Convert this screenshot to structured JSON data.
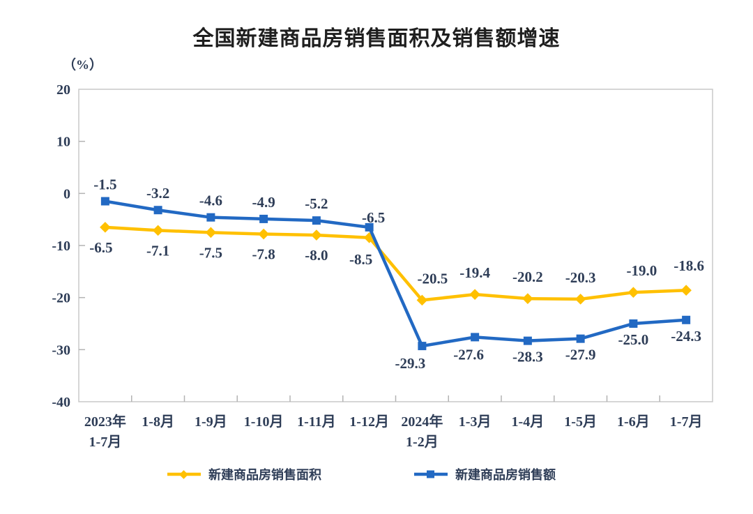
{
  "chart": {
    "title": "全国新建商品房销售面积及销售额增速",
    "unit_label": "（%）"
  },
  "chart_data": {
    "type": "line",
    "title": "全国新建商品房销售面积及销售额增速",
    "ylabel": "（%）",
    "xlabel": "",
    "ylim": [
      -40,
      20
    ],
    "yticks": [
      20,
      10,
      0,
      -10,
      -20,
      -30,
      -40
    ],
    "grid": false,
    "legend_position": "bottom",
    "categories": [
      "2023年\n1-7月",
      "1-8月",
      "1-9月",
      "1-10月",
      "1-11月",
      "1-12月",
      "2024年\n1-2月",
      "1-3月",
      "1-4月",
      "1-5月",
      "1-6月",
      "1-7月"
    ],
    "series": [
      {
        "name": "新建商品房销售面积",
        "marker": "diamond",
        "color": "#FFC000",
        "values": [
          -6.5,
          -7.1,
          -7.5,
          -7.8,
          -8.0,
          -8.5,
          -20.5,
          -19.4,
          -20.2,
          -20.3,
          -19.0,
          -18.6
        ]
      },
      {
        "name": "新建商品房销售额",
        "marker": "square",
        "color": "#2269C3",
        "values": [
          -1.5,
          -3.2,
          -4.6,
          -4.9,
          -5.2,
          -6.5,
          -29.3,
          -27.6,
          -28.3,
          -27.9,
          -25.0,
          -24.3
        ]
      }
    ],
    "colors": {
      "label_text": "#2e3d57",
      "axis_border": "#c9c9c9",
      "tick": "#b3b3b3",
      "title_text": "#1f1f1f"
    }
  }
}
